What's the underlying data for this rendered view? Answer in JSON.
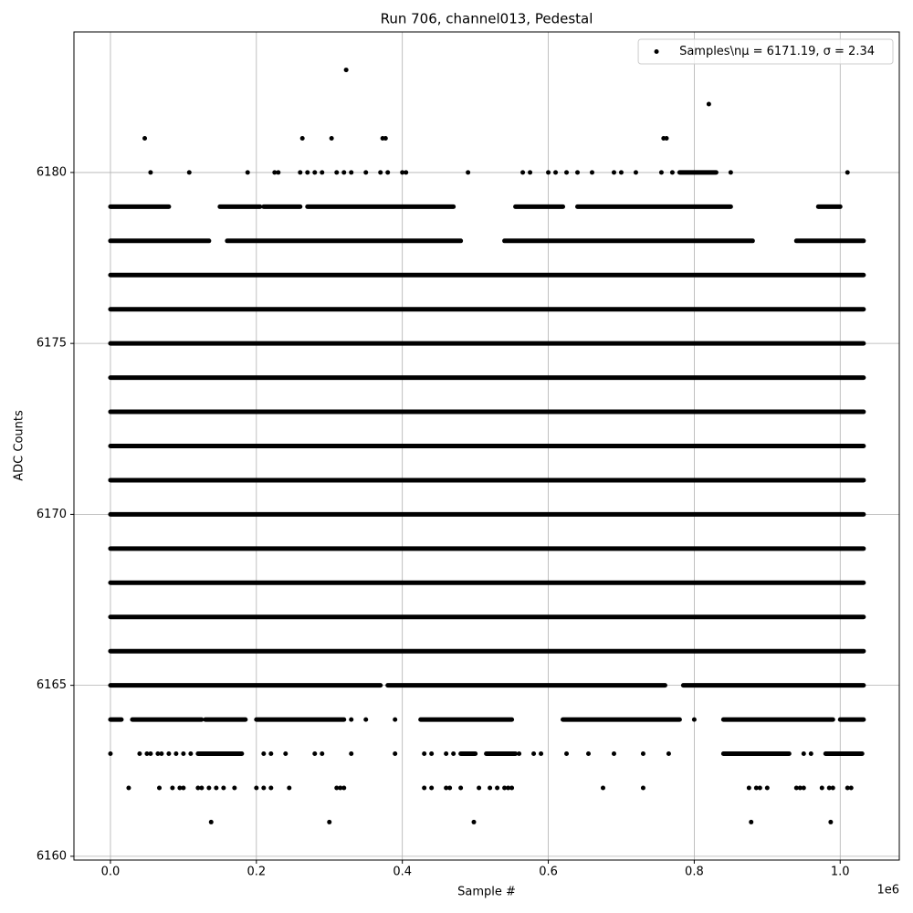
{
  "chart_data": {
    "type": "scatter",
    "title": "Run 706, channel013, Pedestal",
    "xlabel": "Sample #",
    "ylabel": "ADC Counts",
    "x_multiplier": "1e6",
    "xlim": [
      -0.05,
      1.081
    ],
    "ylim": [
      6159.89,
      6184.11
    ],
    "xticks": [
      {
        "value": 0,
        "label": "0.0"
      },
      0.2,
      0.4,
      0.6,
      0.8,
      {
        "value": 1,
        "label": "1.0"
      }
    ],
    "yticks": [
      6160,
      6165,
      6170,
      6175,
      6180
    ],
    "grid": true,
    "legend": "upper right",
    "series": [
      {
        "name": "Samples\\nμ = 6171.19, σ = 2.34",
        "color": "#000000",
        "segments": [
          {
            "y": 6166,
            "x": [
              [
                0,
                1.032
              ]
            ]
          },
          {
            "y": 6167,
            "x": [
              [
                0,
                1.032
              ]
            ]
          },
          {
            "y": 6168,
            "x": [
              [
                0,
                1.032
              ]
            ]
          },
          {
            "y": 6169,
            "x": [
              [
                0,
                1.032
              ]
            ]
          },
          {
            "y": 6170,
            "x": [
              [
                0,
                1.032
              ]
            ]
          },
          {
            "y": 6171,
            "x": [
              [
                0,
                1.032
              ]
            ]
          },
          {
            "y": 6172,
            "x": [
              [
                0,
                1.032
              ]
            ]
          },
          {
            "y": 6173,
            "x": [
              [
                0,
                1.032
              ]
            ]
          },
          {
            "y": 6174,
            "x": [
              [
                0,
                1.032
              ]
            ]
          },
          {
            "y": 6175,
            "x": [
              [
                0,
                1.032
              ]
            ]
          },
          {
            "y": 6176,
            "x": [
              [
                0,
                1.032
              ]
            ]
          },
          {
            "y": 6177,
            "x": [
              [
                0,
                1.032
              ]
            ]
          },
          {
            "y": 6165,
            "x": [
              [
                0,
                0.37
              ],
              [
                0.38,
                0.76
              ],
              [
                0.785,
                1.032
              ]
            ]
          },
          {
            "y": 6178,
            "x": [
              [
                0,
                0.135
              ],
              [
                0.16,
                0.48
              ],
              [
                0.54,
                0.88
              ],
              [
                0.94,
                1.032
              ]
            ]
          },
          {
            "y": 6179,
            "x": [
              [
                0,
                0.08
              ],
              [
                0.15,
                0.205
              ],
              [
                0.21,
                0.26
              ],
              [
                0.27,
                0.47
              ],
              [
                0.555,
                0.62
              ],
              [
                0.64,
                0.85
              ],
              [
                0.97,
                1.0
              ]
            ]
          },
          {
            "y": 6164,
            "x": [
              [
                0,
                0.015
              ],
              [
                0.03,
                0.125
              ],
              [
                0.13,
                0.185
              ],
              [
                0.2,
                0.32
              ],
              [
                0.425,
                0.55
              ],
              [
                0.62,
                0.78
              ],
              [
                0.84,
                0.99
              ],
              [
                1.0,
                1.032
              ]
            ]
          },
          {
            "y": 6163,
            "x": [
              [
                0.12,
                0.18
              ],
              [
                0.48,
                0.5
              ],
              [
                0.515,
                0.555
              ],
              [
                0.84,
                0.93
              ],
              [
                0.98,
                1.03
              ]
            ]
          },
          {
            "y": 6180,
            "x": [
              [
                0.78,
                0.83
              ]
            ]
          }
        ],
        "points": [
          {
            "y": 6180,
            "x": [
              0.055,
              0.108,
              0.188,
              0.225,
              0.23,
              0.26,
              0.27,
              0.28,
              0.29,
              0.31,
              0.32,
              0.33,
              0.35,
              0.37,
              0.38,
              0.4,
              0.405,
              0.49,
              0.565,
              0.575,
              0.6,
              0.61,
              0.625,
              0.64,
              0.66,
              0.69,
              0.7,
              0.72,
              0.755,
              0.77,
              0.85,
              1.01
            ]
          },
          {
            "y": 6181,
            "x": [
              0.047,
              0.263,
              0.303,
              0.373,
              0.377,
              0.758,
              0.762
            ]
          },
          {
            "y": 6182,
            "x": [
              0.82
            ]
          },
          {
            "y": 6183,
            "x": [
              0.323
            ]
          },
          {
            "y": 6164,
            "x": [
              0.33,
              0.35,
              0.39,
              0.8
            ]
          },
          {
            "y": 6163,
            "x": [
              0.0,
              0.04,
              0.05,
              0.055,
              0.065,
              0.07,
              0.08,
              0.09,
              0.1,
              0.11,
              0.21,
              0.22,
              0.24,
              0.28,
              0.29,
              0.33,
              0.39,
              0.43,
              0.44,
              0.46,
              0.47,
              0.56,
              0.58,
              0.59,
              0.625,
              0.655,
              0.69,
              0.73,
              0.765,
              0.95,
              0.96
            ]
          },
          {
            "y": 6162,
            "x": [
              0.025,
              0.067,
              0.085,
              0.095,
              0.1,
              0.12,
              0.125,
              0.135,
              0.145,
              0.155,
              0.17,
              0.2,
              0.21,
              0.22,
              0.245,
              0.31,
              0.315,
              0.32,
              0.43,
              0.44,
              0.46,
              0.465,
              0.48,
              0.505,
              0.52,
              0.53,
              0.54,
              0.545,
              0.55,
              0.675,
              0.73,
              0.875,
              0.885,
              0.89,
              0.9,
              0.94,
              0.945,
              0.95,
              0.975,
              0.985,
              0.99,
              1.01,
              1.015
            ]
          },
          {
            "y": 6161,
            "x": [
              0.138,
              0.3,
              0.498,
              0.878,
              0.987
            ]
          }
        ]
      }
    ]
  }
}
